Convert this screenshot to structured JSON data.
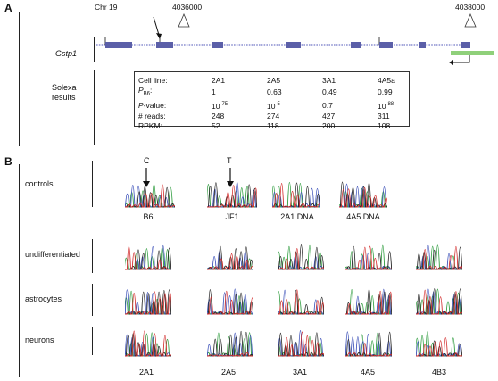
{
  "panel_a": {
    "label": "A",
    "chromosome": "Chr 19",
    "coord_left": "4036000",
    "coord_right": "4038000",
    "gene_name": "Gstp1",
    "solexa_label_line1": "Solexa",
    "solexa_label_line2": "results",
    "stats_table": {
      "headers": [
        "Cell line:",
        "2A1",
        "2A5",
        "3A1",
        "4A5a"
      ],
      "rows": [
        {
          "label_main": "P",
          "label_sub": "B6",
          "label_tail": ":",
          "values": [
            "1",
            "0.63",
            "0.49",
            "0.99"
          ]
        },
        {
          "label_main": "P",
          "label_sub": "",
          "label_tail": "-value:",
          "values": [
            "10-75",
            "10-5",
            "0.7",
            "10-88"
          ]
        },
        {
          "label_main": "# reads:",
          "label_sub": "",
          "label_tail": "",
          "values": [
            "248",
            "274",
            "427",
            "311"
          ]
        },
        {
          "label_main": "RPKM:",
          "label_sub": "",
          "label_tail": "",
          "values": [
            "52",
            "118",
            "200",
            "108"
          ]
        }
      ]
    },
    "colors": {
      "exon": "#5b5fa8",
      "intron": "#8b8fd0",
      "other_gene": "#8fd07a"
    }
  },
  "panel_b": {
    "label": "B",
    "rows": [
      {
        "label": "controls"
      },
      {
        "label": "undifferentiated"
      },
      {
        "label": "astrocytes"
      },
      {
        "label": "neurons"
      }
    ],
    "control_labels": [
      "B6",
      "JF1",
      "2A1 DNA",
      "4A5 DNA"
    ],
    "snp_b6": "C",
    "snp_jf1": "T",
    "column_labels": [
      "2A1",
      "2A5",
      "3A1",
      "4A5",
      "4B3"
    ],
    "trace_colors": {
      "a": "#2a9a3a",
      "c": "#3a4fb8",
      "g": "#222222",
      "t": "#d22a2a"
    }
  }
}
